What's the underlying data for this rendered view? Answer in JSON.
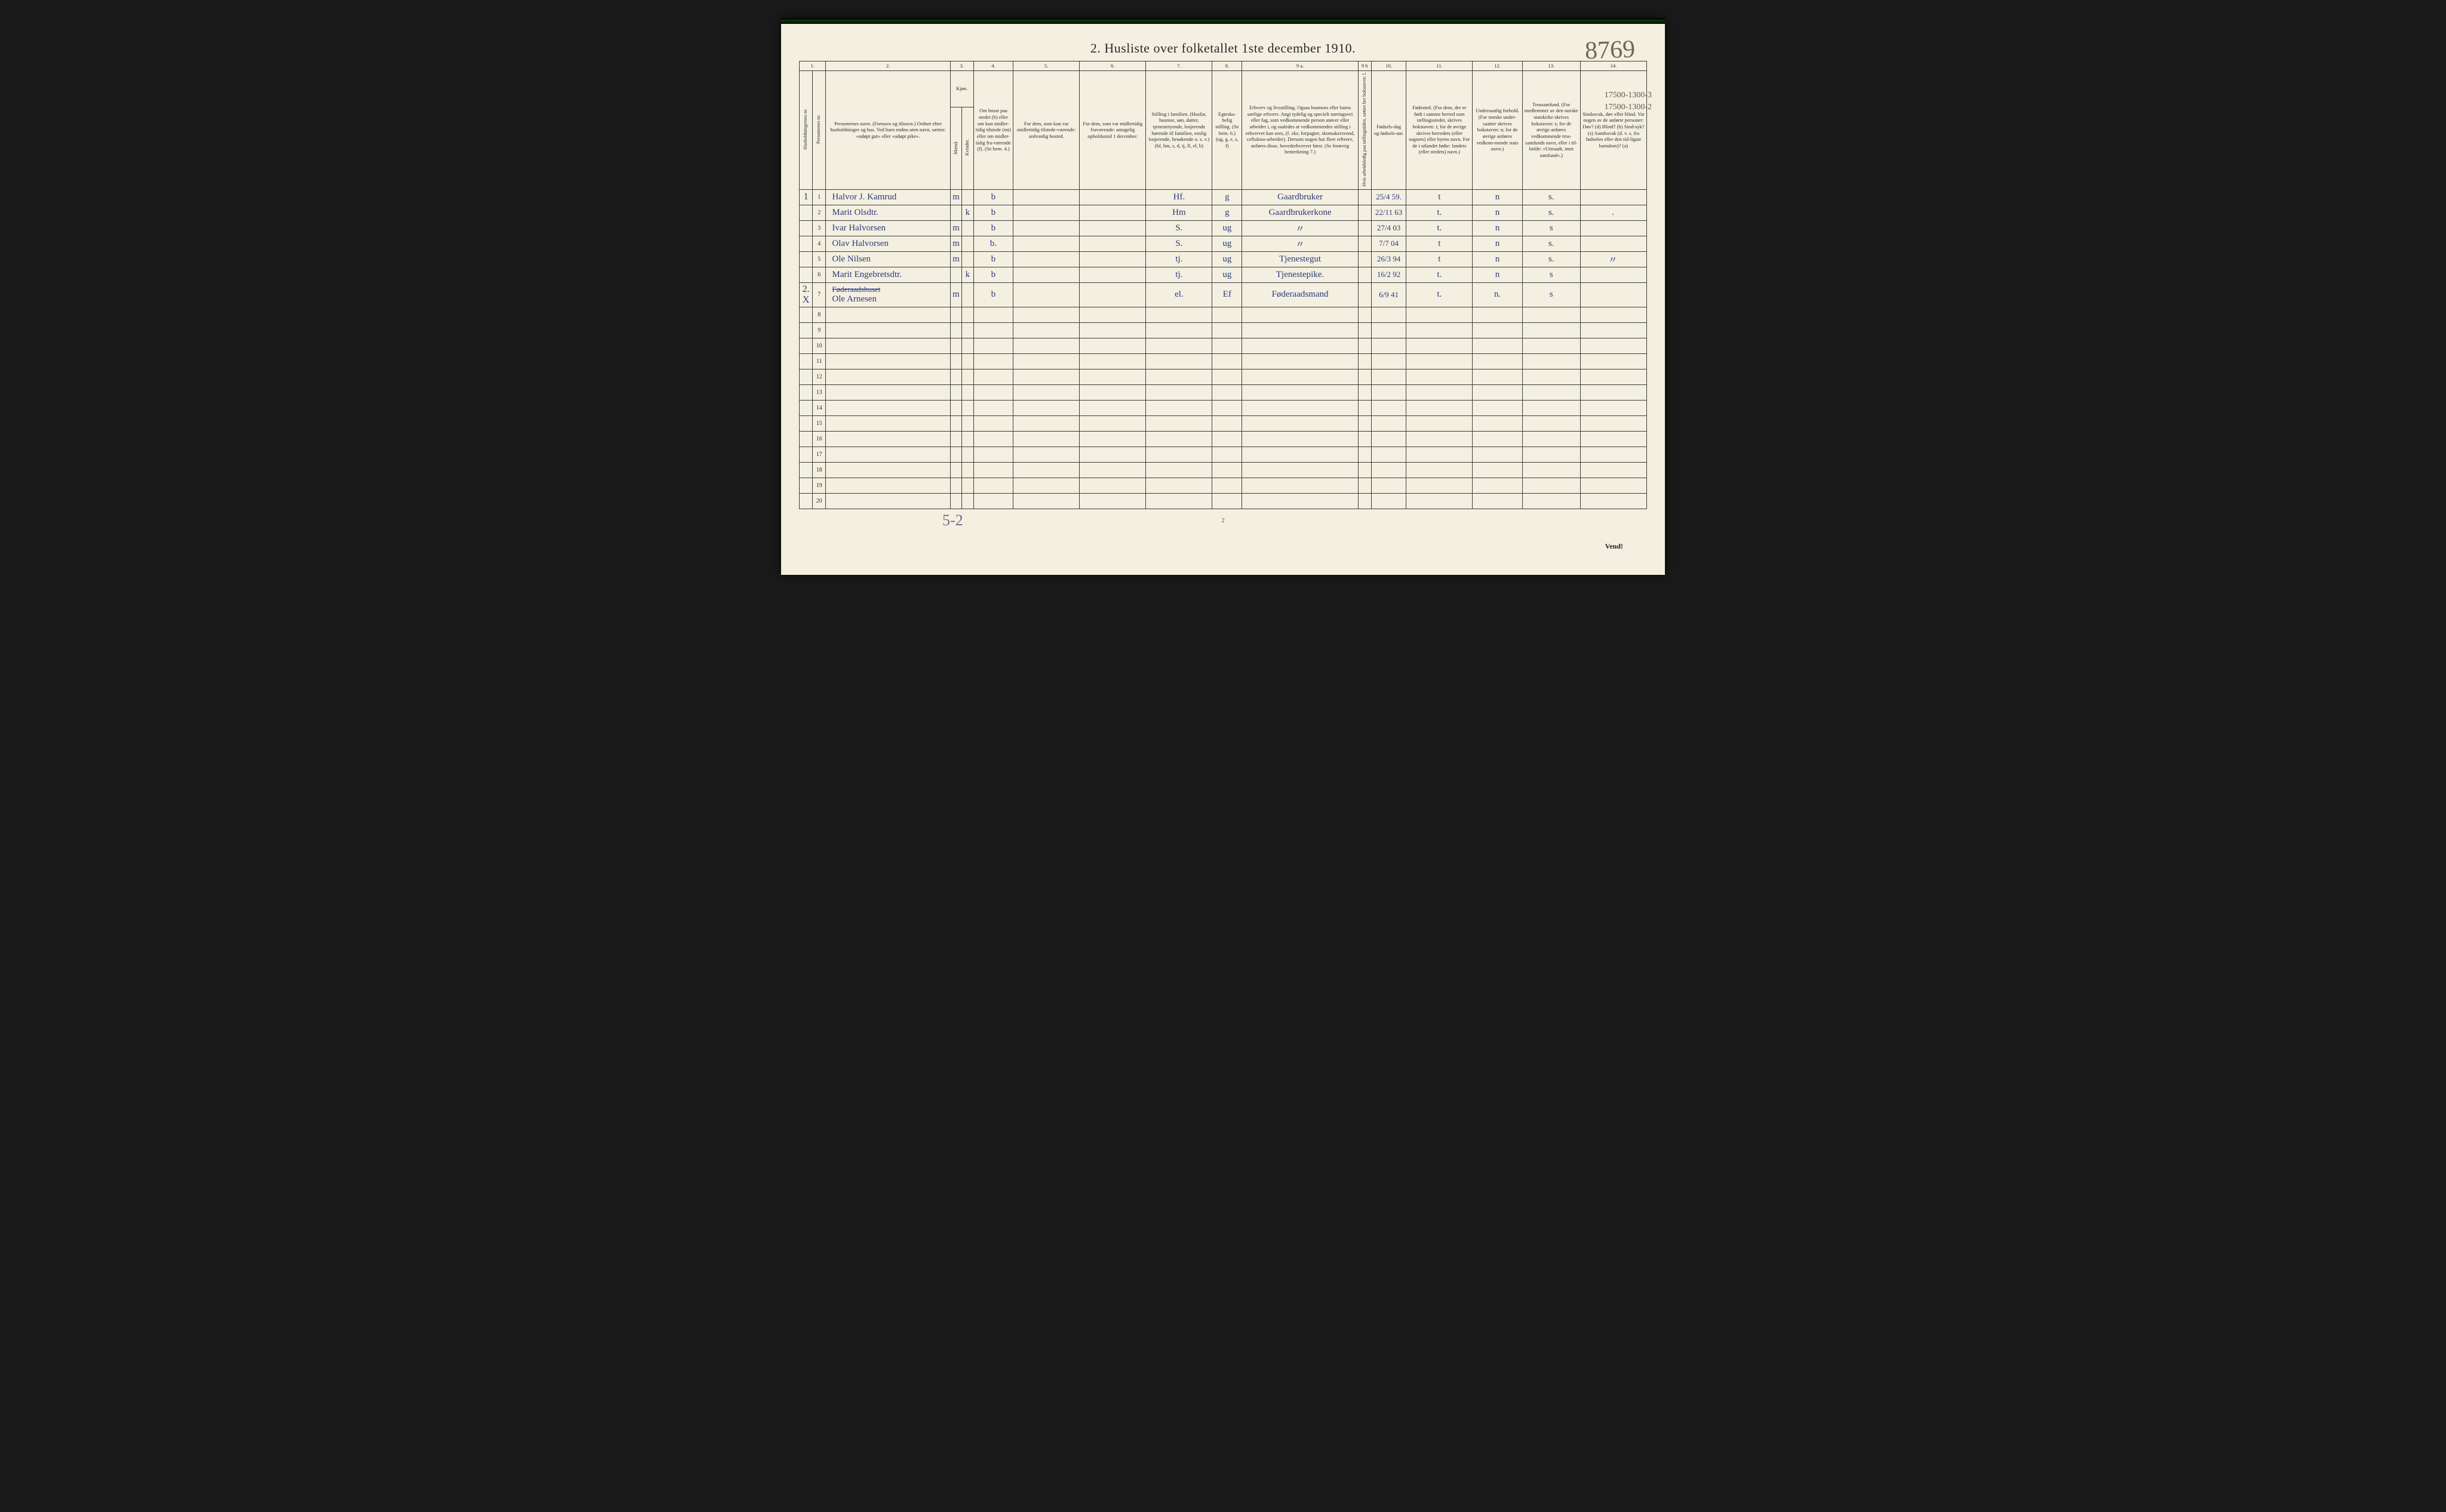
{
  "title": "2.  Husliste over folketallet 1ste december 1910.",
  "script_number": "8769",
  "hand_notes": [
    "17500-1300-3",
    "17500-1300-2"
  ],
  "bottom_script": "5-2",
  "bottom_page": "2",
  "vend": "Vend!",
  "column_numbers": [
    "1.",
    "2.",
    "3.",
    "4.",
    "5.",
    "6.",
    "7.",
    "8.",
    "9 a.",
    "9 b",
    "10.",
    "11.",
    "12.",
    "13.",
    "14."
  ],
  "headers": {
    "c1a": "Husholdningernes nr.",
    "c1b": "Personernes nr.",
    "c2": "Personernes navn.\n(Fornavn og tilnavn.)\nOrdnet efter husholdninger og hus.\nVed barn endnu uten navn, sættes: «udøpt gut» eller «udøpt pike».",
    "c3": "Kjøn.",
    "c3m": "Mænd.",
    "c3k": "Kvinder.",
    "c3mk": "m.  k.",
    "c4": "Om bosat paa stedet (b) eller om kun midler-tidig tilstede (mt) eller om midler-tidig fra-værende (f).\n(Se bem. 4.)",
    "c5": "For dem, som kun var midlertidig tilstede-værende:\nsedvanlig bosted.",
    "c6": "For dem, som var midlertidig fraværende:\nantagelig opholdssted 1 december.",
    "c7": "Stilling i familien.\n(Husfar, husmor, søn, datter, tjenestetyende, losjerende hørende til familien, enslig losjerende, besøkende o. s. v.)\n(hf, hm, s, d, tj, fl, el, b)",
    "c8": "Egteska-belig stilling.\n(Se bem. 6.)\n(ug, g, e, s, f)",
    "c9a": "Erhverv og livsstilling.\nOgsaa husmors eller barns særlige erhverv.\nAngi tydelig og specielt næringsvei eller fag, som vedkommende person utøver eller arbeider i, og saaledes at vedkommendes stilling i erhvervet kan sees, (f. eks. forpagter, skomakersvend, celluloso-arbeider). Dersom nogen har flere erhverv, anføres disse, hovederhvervet først.\n(Se forøvrig bemerkning 7.)",
    "c9b": "Hvis arbeidsledig paa tællingstiden, sættes her bokstaven: l.",
    "c10": "Fødsels-dag og fødsels-aar.",
    "c11": "Fødested.\n(For dem, der er født i samme herred som tællingsstedet, skrives bokstaven: t; for de øvrige skrives herredets (eller sognets) eller byens navn. For de i utlandet fødte: landets (eller stedets) navn.)",
    "c12": "Undersaatlig forhold.\n(For norske under-saatter skrives bokstaven: n; for de øvrige anføres vedkom-mende stats navn.)",
    "c13": "Trossamfund.\n(For medlemmer av den norske statskirke skrives bokstaven: s; for de øvrige anføres vedkommende tros-samfunds navn, eller i til-fælde: «Uttraadt, intet samfund».)",
    "c14": "Sindssvak, døv eller blind.\nVar nogen av de anførte personer:\nDøv? (d)\nBlind? (b)\nSind-syk? (s)\nAandssvak (d. v. s. fra fødselen eller den tid-ligste barndom)? (a)"
  },
  "rows": [
    {
      "house": "1",
      "pnr": "1",
      "name": "Halvor J. Kamrud",
      "sex": "m",
      "res": "b",
      "c5": "",
      "c6": "",
      "fam": "Hf.",
      "eg": "g",
      "erh": "Gaardbruker",
      "dob": "25/4 59.",
      "fod": "t",
      "und": "n",
      "tro": "s.",
      "c14": ""
    },
    {
      "house": "",
      "pnr": "2",
      "name": "Marit Olsdtr.",
      "sex": "k",
      "res": "b",
      "c5": "",
      "c6": "",
      "fam": "Hm",
      "eg": "g",
      "erh": "Gaardbrukerkone",
      "dob": "22/11 63",
      "fod": "t.",
      "und": "n",
      "tro": "s.",
      "c14": "."
    },
    {
      "house": "",
      "pnr": "3",
      "name": "Ivar Halvorsen",
      "sex": "m",
      "res": "b",
      "c5": "",
      "c6": "",
      "fam": "S.",
      "eg": "ug",
      "erh": "〃",
      "dob": "27/4 03",
      "fod": "t.",
      "und": "n",
      "tro": "s",
      "c14": ""
    },
    {
      "house": "",
      "pnr": "4",
      "name": "Olav Halvorsen",
      "sex": "m",
      "res": "b.",
      "c5": "",
      "c6": "",
      "fam": "S.",
      "eg": "ug",
      "erh": "〃",
      "dob": "7/7 04",
      "fod": "t",
      "und": "n",
      "tro": "s.",
      "c14": ""
    },
    {
      "house": "",
      "pnr": "5",
      "name": "Ole Nilsen",
      "sex": "m",
      "res": "b",
      "c5": "",
      "c6": "",
      "fam": "tj.",
      "eg": "ug",
      "erh": "Tjenestegut",
      "dob": "26/3 94",
      "fod": "t",
      "und": "n",
      "tro": "s.",
      "c14": "〃"
    },
    {
      "house": "",
      "pnr": "6",
      "name": "Marit Engebretsdtr.",
      "sex": "k",
      "res": "b",
      "c5": "",
      "c6": "",
      "fam": "tj.",
      "eg": "ug",
      "erh": "Tjenestepike.",
      "dob": "16/2 92",
      "fod": "t.",
      "und": "n",
      "tro": "s",
      "c14": ""
    },
    {
      "house": "2. X",
      "pnr": "7",
      "name": "Ole Arnesen",
      "name_above": "Føderaadshuset",
      "sex": "m",
      "res": "b",
      "c5": "",
      "c6": "",
      "fam": "el.",
      "eg": "Ef",
      "erh": "Føderaadsmand",
      "dob": "6/9 41",
      "fod": "t.",
      "und": "n.",
      "tro": "s",
      "c14": ""
    }
  ],
  "empty_row_numbers": [
    "8",
    "9",
    "10",
    "11",
    "12",
    "13",
    "14",
    "15",
    "16",
    "17",
    "18",
    "19",
    "20"
  ],
  "col_widths": {
    "c1a": "1.6%",
    "c1b": "1.6%",
    "c2": "15%",
    "c3m": "1.4%",
    "c3k": "1.4%",
    "c4": "4.8%",
    "c5": "8%",
    "c6": "8%",
    "c7": "8%",
    "c8": "3.6%",
    "c9a": "14%",
    "c9b": "1.6%",
    "c10": "4.2%",
    "c11": "8%",
    "c12": "6%",
    "c13": "7%",
    "c14": "8%"
  },
  "colors": {
    "paper": "#f4f0e1",
    "ink": "#2a2a2a",
    "hand": "#2a3a7a",
    "pencil": "#6a6a55",
    "border": "#3a3a3a",
    "bg": "#1a1a1a"
  },
  "typography": {
    "print_pt": 9,
    "hand_pt": 15,
    "title_pt": 22
  }
}
